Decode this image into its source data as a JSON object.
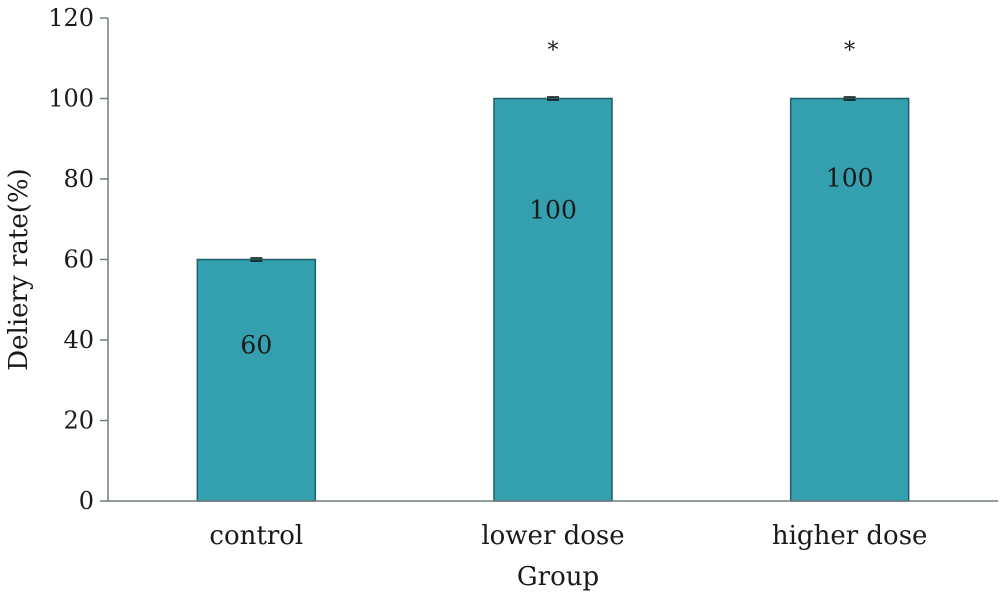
{
  "chart_data": {
    "type": "bar",
    "xlabel": "Group",
    "ylabel": "Deliery rate(%)",
    "categories": [
      "control",
      "lower dose",
      "higher dose"
    ],
    "values": [
      60,
      100,
      100
    ],
    "data_labels": [
      "60",
      "100",
      "100"
    ],
    "significance": [
      "",
      "*",
      "*"
    ],
    "ylim": [
      0,
      120
    ],
    "yticks": [
      0,
      20,
      40,
      60,
      80,
      100,
      120
    ],
    "grid": false,
    "legend": "none",
    "colors": {
      "bar_fill": "#339faf",
      "bar_stroke": "#1f5f66",
      "axis": "#6f7f80",
      "text": "#1a1a1a"
    }
  }
}
